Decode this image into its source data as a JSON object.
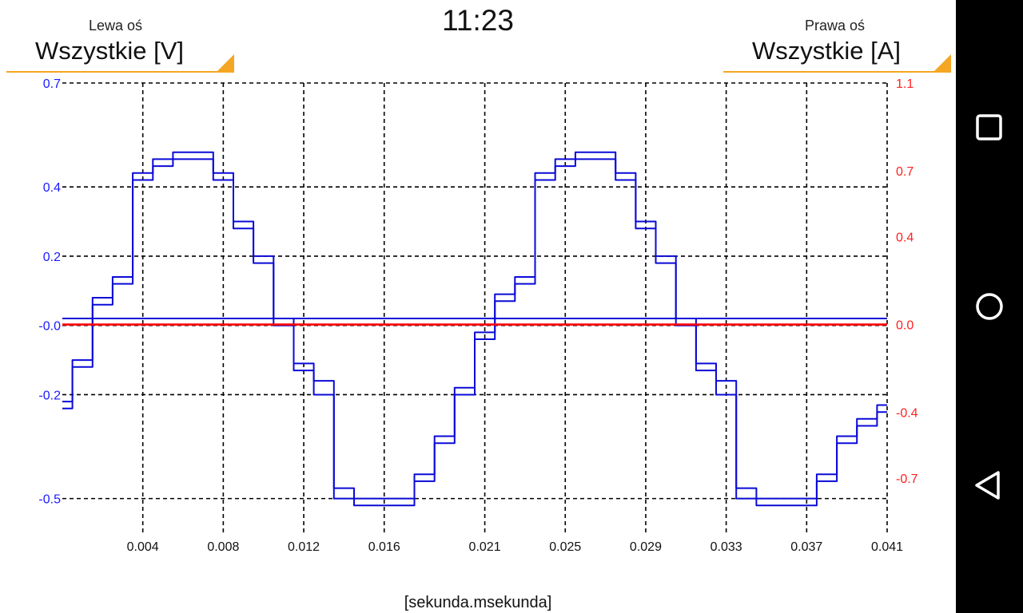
{
  "header": {
    "left_axis": {
      "caption": "Lewa oś",
      "value": "Wszystkie [V]"
    },
    "clock": "11:23",
    "right_axis": {
      "caption": "Prawa oś",
      "value": "Wszystkie [A]"
    }
  },
  "colors": {
    "accent": "#f5a623",
    "left_axis": "#1a1aff",
    "right_axis": "#ff2020",
    "voltage_series": "#0a0ad8",
    "current_series": "#ff0000",
    "grid": "#000000"
  },
  "navbar": {
    "icons": [
      "recents-square-icon",
      "home-circle-icon",
      "back-triangle-icon"
    ]
  },
  "chart_data": {
    "type": "line",
    "xlabel": "[sekunda.msekunda]",
    "xlim": [
      0.0,
      0.041
    ],
    "x_ticks": [
      "0.004",
      "0.008",
      "0.012",
      "0.016",
      "0.021",
      "0.025",
      "0.029",
      "0.033",
      "0.037",
      "0.041"
    ],
    "left_axis": {
      "ylim": [
        -0.6,
        0.7
      ],
      "ticks": [
        "0.7",
        "0.4",
        "0.2",
        "-0.0",
        "-0.2",
        "-0.5"
      ]
    },
    "right_axis": {
      "ylim": [
        -0.95,
        1.1
      ],
      "ticks": [
        "1.1",
        "0.7",
        "0.4",
        "0.0",
        "-0.4",
        "-0.7"
      ]
    },
    "grid": true,
    "series": [
      {
        "axis": "left",
        "color": "#0a0ad8",
        "x": [
          0.0,
          0.001,
          0.002,
          0.003,
          0.004,
          0.005,
          0.006,
          0.007,
          0.008,
          0.009,
          0.01,
          0.011,
          0.012,
          0.013,
          0.014,
          0.015,
          0.016,
          0.017,
          0.018,
          0.019,
          0.02,
          0.021,
          0.022,
          0.023,
          0.024,
          0.025,
          0.026,
          0.027,
          0.028,
          0.029,
          0.03,
          0.031,
          0.032,
          0.033,
          0.034,
          0.035,
          0.036,
          0.037,
          0.038,
          0.039,
          0.04,
          0.041
        ],
        "y": [
          -0.22,
          -0.1,
          0.08,
          0.14,
          0.44,
          0.48,
          0.5,
          0.5,
          0.44,
          0.3,
          0.2,
          0.02,
          -0.11,
          -0.16,
          -0.47,
          -0.5,
          -0.5,
          -0.5,
          -0.43,
          -0.32,
          -0.18,
          -0.02,
          0.09,
          0.14,
          0.44,
          0.48,
          0.5,
          0.5,
          0.44,
          0.3,
          0.2,
          0.02,
          -0.11,
          -0.16,
          -0.47,
          -0.5,
          -0.5,
          -0.5,
          -0.43,
          -0.32,
          -0.27,
          -0.23
        ]
      },
      {
        "axis": "left",
        "color": "#0a0ad8",
        "x": [
          0.0,
          0.001,
          0.002,
          0.003,
          0.004,
          0.005,
          0.006,
          0.007,
          0.008,
          0.009,
          0.01,
          0.011,
          0.012,
          0.013,
          0.014,
          0.015,
          0.016,
          0.017,
          0.018,
          0.019,
          0.02,
          0.021,
          0.022,
          0.023,
          0.024,
          0.025,
          0.026,
          0.027,
          0.028,
          0.029,
          0.03,
          0.031,
          0.032,
          0.033,
          0.034,
          0.035,
          0.036,
          0.037,
          0.038,
          0.039,
          0.04,
          0.041
        ],
        "y": [
          -0.24,
          -0.12,
          0.06,
          0.12,
          0.42,
          0.46,
          0.48,
          0.48,
          0.42,
          0.28,
          0.18,
          0.0,
          -0.13,
          -0.2,
          -0.5,
          -0.52,
          -0.52,
          -0.52,
          -0.45,
          -0.34,
          -0.2,
          -0.04,
          0.07,
          0.12,
          0.42,
          0.46,
          0.48,
          0.48,
          0.42,
          0.28,
          0.18,
          0.0,
          -0.13,
          -0.2,
          -0.5,
          -0.52,
          -0.52,
          -0.52,
          -0.45,
          -0.34,
          -0.29,
          -0.25
        ]
      },
      {
        "axis": "left",
        "color": "#0a0ad8",
        "x": [
          0.0,
          0.041
        ],
        "y": [
          0.02,
          0.02
        ]
      },
      {
        "axis": "right",
        "color": "#ff0000",
        "x": [
          0.0,
          0.041
        ],
        "y": [
          0.0,
          0.0
        ]
      }
    ]
  }
}
